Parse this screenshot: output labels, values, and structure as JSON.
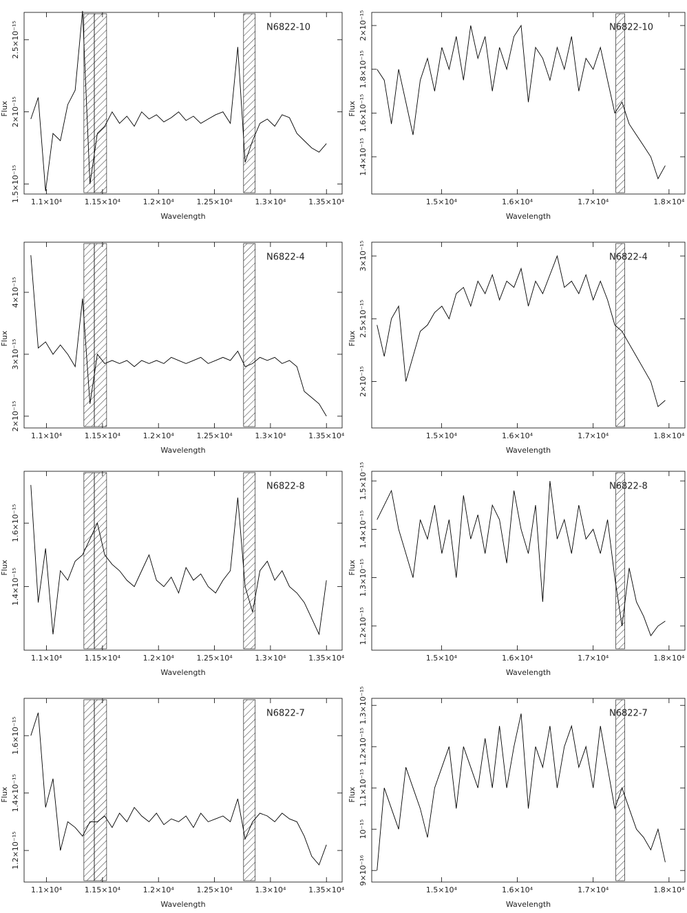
{
  "chart_data": [
    {
      "type": "line",
      "annotation": "N6822-10",
      "xlabel": "Wavelength",
      "ylabel": "Flux",
      "color": "#000000",
      "xlim": [
        10800,
        13640
      ],
      "ylim": [
        1.43e-15,
        2.69e-15
      ],
      "xticks": [
        {
          "value": 11000,
          "label": "1.1×10⁴"
        },
        {
          "value": 11500,
          "label": "1.15×10⁴"
        },
        {
          "value": 12000,
          "label": "1.2×10⁴"
        },
        {
          "value": 12500,
          "label": "1.25×10⁴"
        },
        {
          "value": 13000,
          "label": "1.3×10⁴"
        },
        {
          "value": 13500,
          "label": "1.35×10⁴"
        }
      ],
      "yticks": [
        {
          "value": 1.5e-15,
          "label": "1.5×10⁻¹⁵"
        },
        {
          "value": 2e-15,
          "label": "2×10⁻¹⁵"
        },
        {
          "value": 2.5e-15,
          "label": "2.5×10⁻¹⁵"
        }
      ],
      "shaded_regions": [
        [
          11334,
          11427
        ],
        [
          11427,
          11537
        ],
        [
          12760,
          12864
        ]
      ],
      "x": [
        10860,
        10926,
        10992,
        11058,
        11124,
        11190,
        11256,
        11322,
        11388,
        11454,
        11520,
        11586,
        11652,
        11718,
        11784,
        11850,
        11916,
        11982,
        12048,
        12114,
        12180,
        12246,
        12312,
        12378,
        12444,
        12510,
        12576,
        12642,
        12708,
        12774,
        12840,
        12906,
        12972,
        13038,
        13104,
        13170,
        13236,
        13302,
        13368,
        13434,
        13500
      ],
      "values": [
        1.95e-15,
        2.1e-15,
        1.45e-15,
        1.85e-15,
        1.8e-15,
        2.05e-15,
        2.15e-15,
        2.7e-15,
        1.5e-15,
        1.85e-15,
        1.9e-15,
        2e-15,
        1.92e-15,
        1.97e-15,
        1.9e-15,
        2e-15,
        1.95e-15,
        1.98e-15,
        1.93e-15,
        1.96e-15,
        2e-15,
        1.94e-15,
        1.97e-15,
        1.92e-15,
        1.95e-15,
        1.98e-15,
        2e-15,
        1.92e-15,
        2.45e-15,
        1.65e-15,
        1.8e-15,
        1.92e-15,
        1.95e-15,
        1.9e-15,
        1.98e-15,
        1.96e-15,
        1.85e-15,
        1.8e-15,
        1.75e-15,
        1.72e-15,
        1.78e-15
      ]
    },
    {
      "type": "line",
      "annotation": "N6822-10",
      "xlabel": "Wavelength",
      "ylabel": "Flux",
      "color": "#000000",
      "xlim": [
        14080,
        18210
      ],
      "ylim": [
        1.23e-15,
        2.06e-15
      ],
      "xticks": [
        {
          "value": 15000,
          "label": "1.5×10⁴"
        },
        {
          "value": 16000,
          "label": "1.6×10⁴"
        },
        {
          "value": 17000,
          "label": "1.7×10⁴"
        },
        {
          "value": 18000,
          "label": "1.8×10⁴"
        }
      ],
      "yticks": [
        {
          "value": 1.4e-15,
          "label": "1.4×10⁻¹⁵"
        },
        {
          "value": 1.6e-15,
          "label": "1.6×10⁻¹⁵"
        },
        {
          "value": 1.8e-15,
          "label": "1.8×10⁻¹⁵"
        },
        {
          "value": 2e-15,
          "label": "2×10⁻¹⁵"
        }
      ],
      "shaded_regions": [
        [
          17299,
          17416
        ]
      ],
      "x": [
        14150,
        14245,
        14340,
        14435,
        14530,
        14625,
        14720,
        14815,
        14910,
        15005,
        15100,
        15195,
        15290,
        15385,
        15480,
        15575,
        15670,
        15765,
        15860,
        15955,
        16050,
        16145,
        16240,
        16335,
        16430,
        16525,
        16620,
        16715,
        16810,
        16905,
        17000,
        17095,
        17190,
        17285,
        17380,
        17475,
        17570,
        17665,
        17760,
        17855,
        17950
      ],
      "values": [
        1.8e-15,
        1.75e-15,
        1.55e-15,
        1.8e-15,
        1.65e-15,
        1.5e-15,
        1.75e-15,
        1.85e-15,
        1.7e-15,
        1.9e-15,
        1.8e-15,
        1.95e-15,
        1.75e-15,
        2e-15,
        1.85e-15,
        1.95e-15,
        1.7e-15,
        1.9e-15,
        1.8e-15,
        1.95e-15,
        2e-15,
        1.65e-15,
        1.9e-15,
        1.85e-15,
        1.75e-15,
        1.9e-15,
        1.8e-15,
        1.95e-15,
        1.7e-15,
        1.85e-15,
        1.8e-15,
        1.9e-15,
        1.75e-15,
        1.6e-15,
        1.65e-15,
        1.55e-15,
        1.5e-15,
        1.45e-15,
        1.4e-15,
        1.3e-15,
        1.36e-15
      ]
    },
    {
      "type": "line",
      "annotation": "N6822-4",
      "xlabel": "Wavelength",
      "ylabel": "Flux",
      "color": "#000000",
      "xlim": [
        10800,
        13640
      ],
      "ylim": [
        1.81e-15,
        4.81e-15
      ],
      "xticks": [
        {
          "value": 11000,
          "label": "1.1×10⁴"
        },
        {
          "value": 11500,
          "label": "1.15×10⁴"
        },
        {
          "value": 12000,
          "label": "1.2×10⁴"
        },
        {
          "value": 12500,
          "label": "1.25×10⁴"
        },
        {
          "value": 13000,
          "label": "1.3×10⁴"
        },
        {
          "value": 13500,
          "label": "1.35×10⁴"
        }
      ],
      "yticks": [
        {
          "value": 2e-15,
          "label": "2×10⁻¹⁵"
        },
        {
          "value": 3e-15,
          "label": "3×10⁻¹⁵"
        },
        {
          "value": 4e-15,
          "label": "4×10⁻¹⁵"
        }
      ],
      "shaded_regions": [
        [
          11334,
          11427
        ],
        [
          11427,
          11537
        ],
        [
          12760,
          12864
        ]
      ],
      "x": [
        10860,
        10926,
        10992,
        11058,
        11124,
        11190,
        11256,
        11322,
        11388,
        11454,
        11520,
        11586,
        11652,
        11718,
        11784,
        11850,
        11916,
        11982,
        12048,
        12114,
        12180,
        12246,
        12312,
        12378,
        12444,
        12510,
        12576,
        12642,
        12708,
        12774,
        12840,
        12906,
        12972,
        13038,
        13104,
        13170,
        13236,
        13302,
        13368,
        13434,
        13500
      ],
      "values": [
        4.6e-15,
        3.1e-15,
        3.2e-15,
        3e-15,
        3.15e-15,
        3e-15,
        2.8e-15,
        3.9e-15,
        2.2e-15,
        3e-15,
        2.85e-15,
        2.9e-15,
        2.85e-15,
        2.9e-15,
        2.8e-15,
        2.9e-15,
        2.85e-15,
        2.9e-15,
        2.85e-15,
        2.95e-15,
        2.9e-15,
        2.85e-15,
        2.9e-15,
        2.95e-15,
        2.85e-15,
        2.9e-15,
        2.95e-15,
        2.9e-15,
        3.05e-15,
        2.8e-15,
        2.85e-15,
        2.95e-15,
        2.9e-15,
        2.95e-15,
        2.85e-15,
        2.9e-15,
        2.8e-15,
        2.4e-15,
        2.3e-15,
        2.2e-15,
        2e-15
      ]
    },
    {
      "type": "line",
      "annotation": "N6822-4",
      "xlabel": "Wavelength",
      "ylabel": "Flux",
      "color": "#000000",
      "xlim": [
        14080,
        18210
      ],
      "ylim": [
        1.63e-15,
        3.11e-15
      ],
      "xticks": [
        {
          "value": 15000,
          "label": "1.5×10⁴"
        },
        {
          "value": 16000,
          "label": "1.6×10⁴"
        },
        {
          "value": 17000,
          "label": "1.7×10⁴"
        },
        {
          "value": 18000,
          "label": "1.8×10⁴"
        }
      ],
      "yticks": [
        {
          "value": 2e-15,
          "label": "2×10⁻¹⁵"
        },
        {
          "value": 2.5e-15,
          "label": "2.5×10⁻¹⁵"
        },
        {
          "value": 3e-15,
          "label": "3×10⁻¹⁵"
        }
      ],
      "shaded_regions": [
        [
          17299,
          17416
        ]
      ],
      "x": [
        14150,
        14245,
        14340,
        14435,
        14530,
        14625,
        14720,
        14815,
        14910,
        15005,
        15100,
        15195,
        15290,
        15385,
        15480,
        15575,
        15670,
        15765,
        15860,
        15955,
        16050,
        16145,
        16240,
        16335,
        16430,
        16525,
        16620,
        16715,
        16810,
        16905,
        17000,
        17095,
        17190,
        17285,
        17380,
        17475,
        17570,
        17665,
        17760,
        17855,
        17950
      ],
      "values": [
        2.45e-15,
        2.2e-15,
        2.5e-15,
        2.6e-15,
        2e-15,
        2.2e-15,
        2.4e-15,
        2.45e-15,
        2.55e-15,
        2.6e-15,
        2.5e-15,
        2.7e-15,
        2.75e-15,
        2.6e-15,
        2.8e-15,
        2.7e-15,
        2.85e-15,
        2.65e-15,
        2.8e-15,
        2.75e-15,
        2.9e-15,
        2.6e-15,
        2.8e-15,
        2.7e-15,
        2.85e-15,
        3e-15,
        2.75e-15,
        2.8e-15,
        2.7e-15,
        2.85e-15,
        2.65e-15,
        2.8e-15,
        2.65e-15,
        2.45e-15,
        2.4e-15,
        2.3e-15,
        2.2e-15,
        2.1e-15,
        2e-15,
        1.8e-15,
        1.85e-15
      ]
    },
    {
      "type": "line",
      "annotation": "N6822-8",
      "xlabel": "Wavelength",
      "ylabel": "Flux",
      "color": "#000000",
      "xlim": [
        10800,
        13640
      ],
      "ylim": [
        1.2e-15,
        1.763e-15
      ],
      "xticks": [
        {
          "value": 11000,
          "label": "1.1×10⁴"
        },
        {
          "value": 11500,
          "label": "1.15×10⁴"
        },
        {
          "value": 12000,
          "label": "1.2×10⁴"
        },
        {
          "value": 12500,
          "label": "1.25×10⁴"
        },
        {
          "value": 13000,
          "label": "1.3×10⁴"
        },
        {
          "value": 13500,
          "label": "1.35×10⁴"
        }
      ],
      "yticks": [
        {
          "value": 1.4e-15,
          "label": "1.4×10⁻¹⁵"
        },
        {
          "value": 1.6e-15,
          "label": "1.6×10⁻¹⁵"
        }
      ],
      "shaded_regions": [
        [
          11334,
          11427
        ],
        [
          11427,
          11537
        ],
        [
          12760,
          12864
        ]
      ],
      "x": [
        10860,
        10926,
        10992,
        11058,
        11124,
        11190,
        11256,
        11322,
        11388,
        11454,
        11520,
        11586,
        11652,
        11718,
        11784,
        11850,
        11916,
        11982,
        12048,
        12114,
        12180,
        12246,
        12312,
        12378,
        12444,
        12510,
        12576,
        12642,
        12708,
        12774,
        12840,
        12906,
        12972,
        13038,
        13104,
        13170,
        13236,
        13302,
        13368,
        13434,
        13500
      ],
      "values": [
        1.72e-15,
        1.35e-15,
        1.52e-15,
        1.25e-15,
        1.45e-15,
        1.42e-15,
        1.48e-15,
        1.5e-15,
        1.55e-15,
        1.6e-15,
        1.5e-15,
        1.47e-15,
        1.45e-15,
        1.42e-15,
        1.4e-15,
        1.45e-15,
        1.5e-15,
        1.42e-15,
        1.4e-15,
        1.43e-15,
        1.38e-15,
        1.46e-15,
        1.42e-15,
        1.44e-15,
        1.4e-15,
        1.38e-15,
        1.42e-15,
        1.45e-15,
        1.68e-15,
        1.4e-15,
        1.32e-15,
        1.45e-15,
        1.48e-15,
        1.42e-15,
        1.45e-15,
        1.4e-15,
        1.38e-15,
        1.35e-15,
        1.3e-15,
        1.25e-15,
        1.42e-15
      ]
    },
    {
      "type": "line",
      "annotation": "N6822-8",
      "xlabel": "Wavelength",
      "ylabel": "Flux",
      "color": "#000000",
      "xlim": [
        14080,
        18210
      ],
      "ylim": [
        1.15e-15,
        1.52e-15
      ],
      "xticks": [
        {
          "value": 15000,
          "label": "1.5×10⁴"
        },
        {
          "value": 16000,
          "label": "1.6×10⁴"
        },
        {
          "value": 17000,
          "label": "1.7×10⁴"
        },
        {
          "value": 18000,
          "label": "1.8×10⁴"
        }
      ],
      "yticks": [
        {
          "value": 1.2e-15,
          "label": "1.2×10⁻¹⁵"
        },
        {
          "value": 1.3e-15,
          "label": "1.3×10⁻¹⁵"
        },
        {
          "value": 1.4e-15,
          "label": "1.4×10⁻¹⁵"
        },
        {
          "value": 1.5e-15,
          "label": "1.5×10⁻¹⁵"
        }
      ],
      "shaded_regions": [
        [
          17299,
          17416
        ]
      ],
      "x": [
        14150,
        14245,
        14340,
        14435,
        14530,
        14625,
        14720,
        14815,
        14910,
        15005,
        15100,
        15195,
        15290,
        15385,
        15480,
        15575,
        15670,
        15765,
        15860,
        15955,
        16050,
        16145,
        16240,
        16335,
        16430,
        16525,
        16620,
        16715,
        16810,
        16905,
        17000,
        17095,
        17190,
        17285,
        17380,
        17475,
        17570,
        17665,
        17760,
        17855,
        17950
      ],
      "values": [
        1.42e-15,
        1.45e-15,
        1.48e-15,
        1.4e-15,
        1.35e-15,
        1.3e-15,
        1.42e-15,
        1.38e-15,
        1.45e-15,
        1.35e-15,
        1.42e-15,
        1.3e-15,
        1.47e-15,
        1.38e-15,
        1.43e-15,
        1.35e-15,
        1.45e-15,
        1.42e-15,
        1.33e-15,
        1.48e-15,
        1.4e-15,
        1.35e-15,
        1.45e-15,
        1.25e-15,
        1.5e-15,
        1.38e-15,
        1.42e-15,
        1.35e-15,
        1.45e-15,
        1.38e-15,
        1.4e-15,
        1.35e-15,
        1.42e-15,
        1.3e-15,
        1.2e-15,
        1.32e-15,
        1.25e-15,
        1.22e-15,
        1.18e-15,
        1.2e-15,
        1.21e-15
      ]
    },
    {
      "type": "line",
      "annotation": "N6822-7",
      "xlabel": "Wavelength",
      "ylabel": "Flux",
      "color": "#000000",
      "xlim": [
        10800,
        13640
      ],
      "ylim": [
        1.09e-15,
        1.73e-15
      ],
      "xticks": [
        {
          "value": 11000,
          "label": "1.1×10⁴"
        },
        {
          "value": 11500,
          "label": "1.15×10⁴"
        },
        {
          "value": 12000,
          "label": "1.2×10⁴"
        },
        {
          "value": 12500,
          "label": "1.25×10⁴"
        },
        {
          "value": 13000,
          "label": "1.3×10⁴"
        },
        {
          "value": 13500,
          "label": "1.35×10⁴"
        }
      ],
      "yticks": [
        {
          "value": 1.2e-15,
          "label": "1.2×10⁻¹⁵"
        },
        {
          "value": 1.4e-15,
          "label": "1.4×10⁻¹⁵"
        },
        {
          "value": 1.6e-15,
          "label": "1.6×10⁻¹⁵"
        }
      ],
      "shaded_regions": [
        [
          11334,
          11427
        ],
        [
          11427,
          11537
        ],
        [
          12760,
          12864
        ]
      ],
      "x": [
        10860,
        10926,
        10992,
        11058,
        11124,
        11190,
        11256,
        11322,
        11388,
        11454,
        11520,
        11586,
        11652,
        11718,
        11784,
        11850,
        11916,
        11982,
        12048,
        12114,
        12180,
        12246,
        12312,
        12378,
        12444,
        12510,
        12576,
        12642,
        12708,
        12774,
        12840,
        12906,
        12972,
        13038,
        13104,
        13170,
        13236,
        13302,
        13368,
        13434,
        13500
      ],
      "values": [
        1.6e-15,
        1.68e-15,
        1.35e-15,
        1.45e-15,
        1.2e-15,
        1.3e-15,
        1.28e-15,
        1.25e-15,
        1.3e-15,
        1.3e-15,
        1.32e-15,
        1.28e-15,
        1.33e-15,
        1.3e-15,
        1.35e-15,
        1.32e-15,
        1.3e-15,
        1.33e-15,
        1.29e-15,
        1.31e-15,
        1.3e-15,
        1.32e-15,
        1.28e-15,
        1.33e-15,
        1.3e-15,
        1.31e-15,
        1.32e-15,
        1.3e-15,
        1.38e-15,
        1.24e-15,
        1.3e-15,
        1.33e-15,
        1.32e-15,
        1.3e-15,
        1.33e-15,
        1.31e-15,
        1.3e-15,
        1.25e-15,
        1.18e-15,
        1.15e-15,
        1.22e-15
      ]
    },
    {
      "type": "line",
      "annotation": "N6822-7",
      "xlabel": "Wavelength",
      "ylabel": "Flux",
      "color": "#000000",
      "xlim": [
        14080,
        18210
      ],
      "ylim": [
        8.72e-16,
        1.317e-15
      ],
      "xticks": [
        {
          "value": 15000,
          "label": "1.5×10⁴"
        },
        {
          "value": 16000,
          "label": "1.6×10⁴"
        },
        {
          "value": 17000,
          "label": "1.7×10⁴"
        },
        {
          "value": 18000,
          "label": "1.8×10⁴"
        }
      ],
      "yticks": [
        {
          "value": 9e-16,
          "label": "9×10⁻¹⁶"
        },
        {
          "value": 1e-15,
          "label": "10⁻¹⁵"
        },
        {
          "value": 1.1e-15,
          "label": "1.1×10⁻¹⁵"
        },
        {
          "value": 1.2e-15,
          "label": "1.2×10⁻¹⁵"
        },
        {
          "value": 1.3e-15,
          "label": "1.3×10⁻¹⁵"
        }
      ],
      "shaded_regions": [
        [
          17299,
          17416
        ]
      ],
      "x": [
        14150,
        14245,
        14340,
        14435,
        14530,
        14625,
        14720,
        14815,
        14910,
        15005,
        15100,
        15195,
        15290,
        15385,
        15480,
        15575,
        15670,
        15765,
        15860,
        15955,
        16050,
        16145,
        16240,
        16335,
        16430,
        16525,
        16620,
        16715,
        16810,
        16905,
        17000,
        17095,
        17190,
        17285,
        17380,
        17475,
        17570,
        17665,
        17760,
        17855,
        17950
      ],
      "values": [
        9e-16,
        1.1e-15,
        1.05e-15,
        1e-15,
        1.15e-15,
        1.1e-15,
        1.05e-15,
        9.8e-16,
        1.1e-15,
        1.15e-15,
        1.2e-15,
        1.05e-15,
        1.2e-15,
        1.15e-15,
        1.1e-15,
        1.22e-15,
        1.1e-15,
        1.25e-15,
        1.1e-15,
        1.2e-15,
        1.28e-15,
        1.05e-15,
        1.2e-15,
        1.15e-15,
        1.25e-15,
        1.1e-15,
        1.2e-15,
        1.25e-15,
        1.15e-15,
        1.2e-15,
        1.1e-15,
        1.25e-15,
        1.15e-15,
        1.05e-15,
        1.1e-15,
        1.05e-15,
        1e-15,
        9.8e-16,
        9.5e-16,
        1e-15,
        9.2e-16
      ]
    }
  ]
}
